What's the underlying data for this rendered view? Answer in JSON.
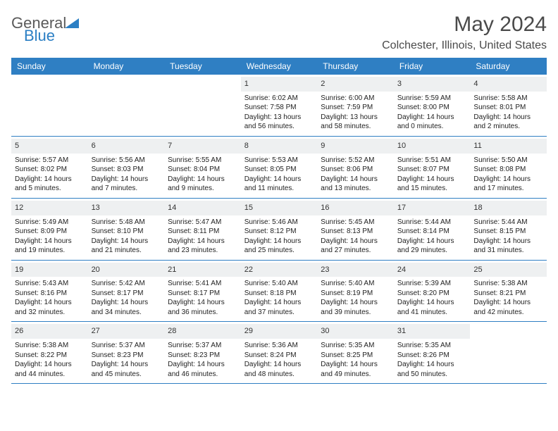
{
  "logo": {
    "text1": "General",
    "text2": "Blue"
  },
  "title": "May 2024",
  "location": "Colchester, Illinois, United States",
  "colors": {
    "header_bg": "#2f7fc3",
    "header_fg": "#ffffff",
    "daynum_bg": "#eef0f1",
    "border": "#2f7fc3",
    "logo_gray": "#5a5a5a",
    "logo_blue": "#2b7fc4"
  },
  "weekdays": [
    "Sunday",
    "Monday",
    "Tuesday",
    "Wednesday",
    "Thursday",
    "Friday",
    "Saturday"
  ],
  "weeks": [
    [
      {
        "n": "",
        "empty": true
      },
      {
        "n": "",
        "empty": true
      },
      {
        "n": "",
        "empty": true
      },
      {
        "n": "1",
        "sr": "Sunrise: 6:02 AM",
        "ss": "Sunset: 7:58 PM",
        "dl1": "Daylight: 13 hours",
        "dl2": "and 56 minutes."
      },
      {
        "n": "2",
        "sr": "Sunrise: 6:00 AM",
        "ss": "Sunset: 7:59 PM",
        "dl1": "Daylight: 13 hours",
        "dl2": "and 58 minutes."
      },
      {
        "n": "3",
        "sr": "Sunrise: 5:59 AM",
        "ss": "Sunset: 8:00 PM",
        "dl1": "Daylight: 14 hours",
        "dl2": "and 0 minutes."
      },
      {
        "n": "4",
        "sr": "Sunrise: 5:58 AM",
        "ss": "Sunset: 8:01 PM",
        "dl1": "Daylight: 14 hours",
        "dl2": "and 2 minutes."
      }
    ],
    [
      {
        "n": "5",
        "sr": "Sunrise: 5:57 AM",
        "ss": "Sunset: 8:02 PM",
        "dl1": "Daylight: 14 hours",
        "dl2": "and 5 minutes."
      },
      {
        "n": "6",
        "sr": "Sunrise: 5:56 AM",
        "ss": "Sunset: 8:03 PM",
        "dl1": "Daylight: 14 hours",
        "dl2": "and 7 minutes."
      },
      {
        "n": "7",
        "sr": "Sunrise: 5:55 AM",
        "ss": "Sunset: 8:04 PM",
        "dl1": "Daylight: 14 hours",
        "dl2": "and 9 minutes."
      },
      {
        "n": "8",
        "sr": "Sunrise: 5:53 AM",
        "ss": "Sunset: 8:05 PM",
        "dl1": "Daylight: 14 hours",
        "dl2": "and 11 minutes."
      },
      {
        "n": "9",
        "sr": "Sunrise: 5:52 AM",
        "ss": "Sunset: 8:06 PM",
        "dl1": "Daylight: 14 hours",
        "dl2": "and 13 minutes."
      },
      {
        "n": "10",
        "sr": "Sunrise: 5:51 AM",
        "ss": "Sunset: 8:07 PM",
        "dl1": "Daylight: 14 hours",
        "dl2": "and 15 minutes."
      },
      {
        "n": "11",
        "sr": "Sunrise: 5:50 AM",
        "ss": "Sunset: 8:08 PM",
        "dl1": "Daylight: 14 hours",
        "dl2": "and 17 minutes."
      }
    ],
    [
      {
        "n": "12",
        "sr": "Sunrise: 5:49 AM",
        "ss": "Sunset: 8:09 PM",
        "dl1": "Daylight: 14 hours",
        "dl2": "and 19 minutes."
      },
      {
        "n": "13",
        "sr": "Sunrise: 5:48 AM",
        "ss": "Sunset: 8:10 PM",
        "dl1": "Daylight: 14 hours",
        "dl2": "and 21 minutes."
      },
      {
        "n": "14",
        "sr": "Sunrise: 5:47 AM",
        "ss": "Sunset: 8:11 PM",
        "dl1": "Daylight: 14 hours",
        "dl2": "and 23 minutes."
      },
      {
        "n": "15",
        "sr": "Sunrise: 5:46 AM",
        "ss": "Sunset: 8:12 PM",
        "dl1": "Daylight: 14 hours",
        "dl2": "and 25 minutes."
      },
      {
        "n": "16",
        "sr": "Sunrise: 5:45 AM",
        "ss": "Sunset: 8:13 PM",
        "dl1": "Daylight: 14 hours",
        "dl2": "and 27 minutes."
      },
      {
        "n": "17",
        "sr": "Sunrise: 5:44 AM",
        "ss": "Sunset: 8:14 PM",
        "dl1": "Daylight: 14 hours",
        "dl2": "and 29 minutes."
      },
      {
        "n": "18",
        "sr": "Sunrise: 5:44 AM",
        "ss": "Sunset: 8:15 PM",
        "dl1": "Daylight: 14 hours",
        "dl2": "and 31 minutes."
      }
    ],
    [
      {
        "n": "19",
        "sr": "Sunrise: 5:43 AM",
        "ss": "Sunset: 8:16 PM",
        "dl1": "Daylight: 14 hours",
        "dl2": "and 32 minutes."
      },
      {
        "n": "20",
        "sr": "Sunrise: 5:42 AM",
        "ss": "Sunset: 8:17 PM",
        "dl1": "Daylight: 14 hours",
        "dl2": "and 34 minutes."
      },
      {
        "n": "21",
        "sr": "Sunrise: 5:41 AM",
        "ss": "Sunset: 8:17 PM",
        "dl1": "Daylight: 14 hours",
        "dl2": "and 36 minutes."
      },
      {
        "n": "22",
        "sr": "Sunrise: 5:40 AM",
        "ss": "Sunset: 8:18 PM",
        "dl1": "Daylight: 14 hours",
        "dl2": "and 37 minutes."
      },
      {
        "n": "23",
        "sr": "Sunrise: 5:40 AM",
        "ss": "Sunset: 8:19 PM",
        "dl1": "Daylight: 14 hours",
        "dl2": "and 39 minutes."
      },
      {
        "n": "24",
        "sr": "Sunrise: 5:39 AM",
        "ss": "Sunset: 8:20 PM",
        "dl1": "Daylight: 14 hours",
        "dl2": "and 41 minutes."
      },
      {
        "n": "25",
        "sr": "Sunrise: 5:38 AM",
        "ss": "Sunset: 8:21 PM",
        "dl1": "Daylight: 14 hours",
        "dl2": "and 42 minutes."
      }
    ],
    [
      {
        "n": "26",
        "sr": "Sunrise: 5:38 AM",
        "ss": "Sunset: 8:22 PM",
        "dl1": "Daylight: 14 hours",
        "dl2": "and 44 minutes."
      },
      {
        "n": "27",
        "sr": "Sunrise: 5:37 AM",
        "ss": "Sunset: 8:23 PM",
        "dl1": "Daylight: 14 hours",
        "dl2": "and 45 minutes."
      },
      {
        "n": "28",
        "sr": "Sunrise: 5:37 AM",
        "ss": "Sunset: 8:23 PM",
        "dl1": "Daylight: 14 hours",
        "dl2": "and 46 minutes."
      },
      {
        "n": "29",
        "sr": "Sunrise: 5:36 AM",
        "ss": "Sunset: 8:24 PM",
        "dl1": "Daylight: 14 hours",
        "dl2": "and 48 minutes."
      },
      {
        "n": "30",
        "sr": "Sunrise: 5:35 AM",
        "ss": "Sunset: 8:25 PM",
        "dl1": "Daylight: 14 hours",
        "dl2": "and 49 minutes."
      },
      {
        "n": "31",
        "sr": "Sunrise: 5:35 AM",
        "ss": "Sunset: 8:26 PM",
        "dl1": "Daylight: 14 hours",
        "dl2": "and 50 minutes."
      },
      {
        "n": "",
        "empty": true
      }
    ]
  ]
}
